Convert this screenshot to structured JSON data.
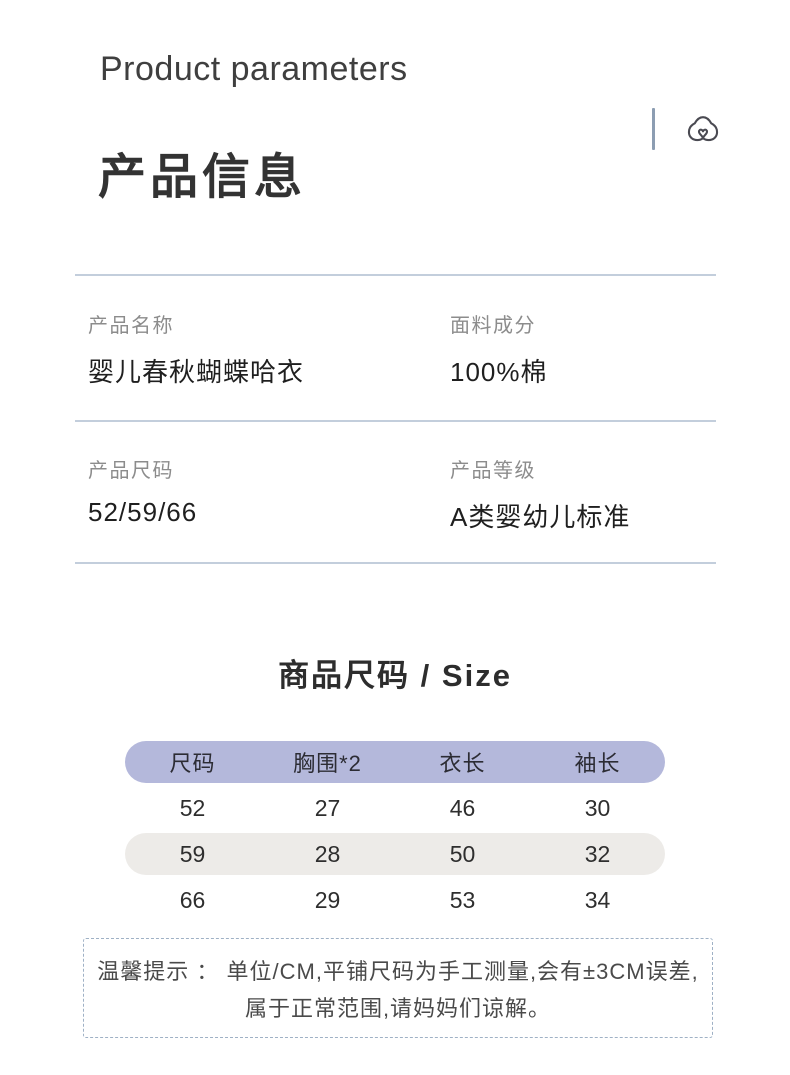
{
  "header": {
    "title_en": "Product parameters",
    "title_zh": "产品信息",
    "brand_icon": "cloud-heart-logo"
  },
  "info": {
    "fields": [
      {
        "label": "产品名称",
        "value": "婴儿春秋蝴蝶哈衣"
      },
      {
        "label": "面料成分",
        "value": "100%棉"
      },
      {
        "label": "产品尺码",
        "value": "52/59/66"
      },
      {
        "label": "产品等级",
        "value": "A类婴幼儿标准"
      }
    ]
  },
  "size_section": {
    "title": "商品尺码 / Size"
  },
  "size_table": {
    "headers": [
      "尺码",
      "胸围*2",
      "衣长",
      "袖长"
    ],
    "rows": [
      [
        "52",
        "27",
        "46",
        "30"
      ],
      [
        "59",
        "28",
        "50",
        "32"
      ],
      [
        "66",
        "29",
        "53",
        "34"
      ]
    ]
  },
  "tips": {
    "line1": "温馨提示 ： 单位/CM,平铺尺码为手工测量,会有±3CM误差,",
    "line2": "属于正常范围,请妈妈们谅解。"
  },
  "colors": {
    "table_header_bg": "#b4b8db",
    "table_alt_row_bg": "#edebe8",
    "divider": "#c3cedc",
    "accent_line": "#8c9db2"
  }
}
